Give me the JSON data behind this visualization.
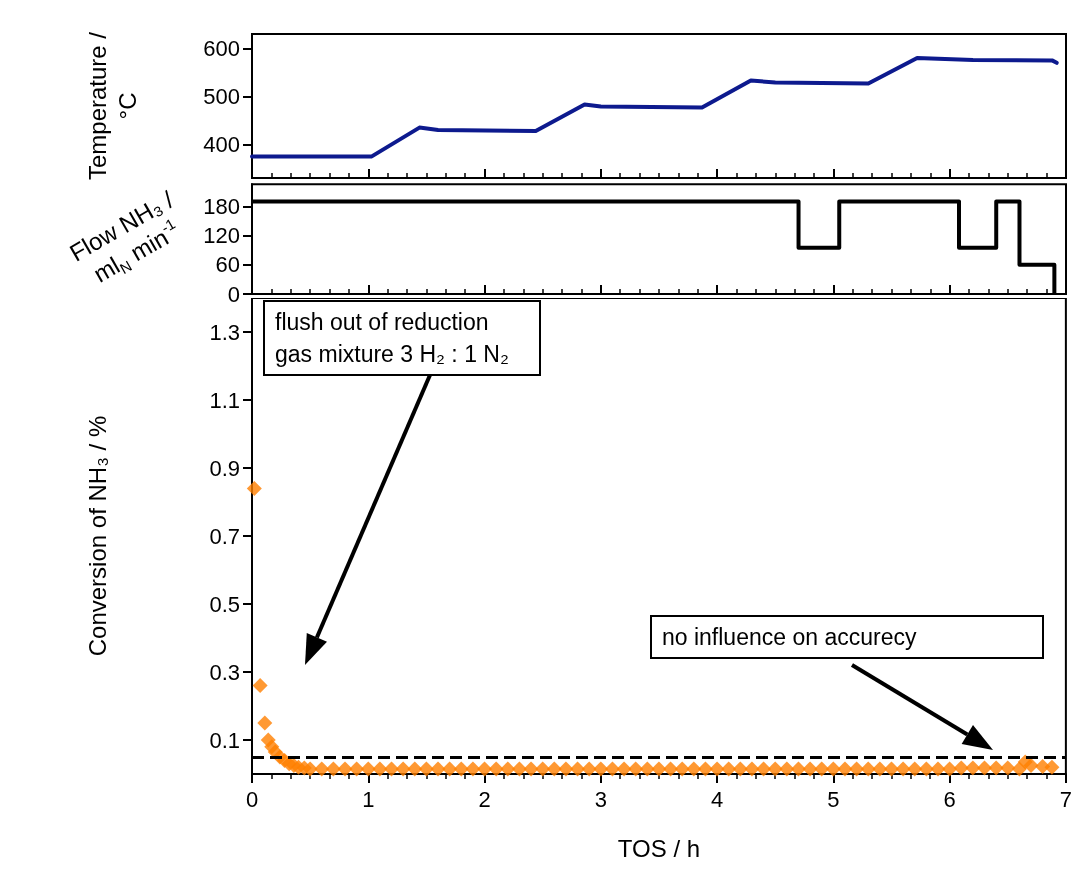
{
  "chart_data": [
    {
      "type": "line",
      "ylabel": "Temperature / °C",
      "x": [
        0,
        1.03,
        1.44,
        1.6,
        2.44,
        2.86,
        3.0,
        3.87,
        4.29,
        4.5,
        5.3,
        5.72,
        6.2,
        6.88,
        6.92
      ],
      "series": [
        {
          "color": "#0d1a8e",
          "values": [
            375,
            375,
            435,
            430,
            428,
            483,
            479,
            477,
            533,
            529,
            527,
            580,
            576,
            575,
            570
          ]
        }
      ],
      "xlim": [
        0,
        7
      ],
      "xticks": [
        0,
        1,
        2,
        3,
        4,
        5,
        6,
        7
      ],
      "ylim": [
        330,
        630
      ],
      "yticks": [
        400,
        500,
        600
      ],
      "tick_labels": "y",
      "line_style": "solid",
      "marker": "none"
    },
    {
      "type": "step",
      "ylabel": "Flow NH₃ / ml$_{N}$ min$^{-1}$",
      "x": [
        0,
        4.7,
        5.05,
        6.08,
        6.4,
        6.6,
        6.9
      ],
      "series": [
        {
          "color": "#000000",
          "values": [
            190,
            95,
            190,
            95,
            190,
            60,
            0
          ]
        }
      ],
      "xlim": [
        0,
        7
      ],
      "xticks": [
        0,
        1,
        2,
        3,
        4,
        5,
        6,
        7
      ],
      "ylim": [
        0,
        225
      ],
      "yticks": [
        0,
        60,
        120,
        180
      ],
      "tick_labels": "y",
      "line_style": "solid",
      "marker": "none"
    },
    {
      "type": "scatter",
      "xlabel": "TOS / h",
      "ylabel": "Conversion of NH₃ / %",
      "marker": "diamond",
      "x": [
        0.02,
        0.07,
        0.11,
        0.14,
        0.17,
        0.2,
        0.24,
        0.28,
        0.32,
        0.36,
        0.4,
        0.45,
        0.5,
        0.6,
        0.7,
        0.8,
        0.9,
        1.0,
        1.1,
        1.2,
        1.3,
        1.4,
        1.5,
        1.6,
        1.7,
        1.8,
        1.9,
        2.0,
        2.1,
        2.2,
        2.3,
        2.4,
        2.5,
        2.6,
        2.7,
        2.8,
        2.9,
        3.0,
        3.1,
        3.2,
        3.3,
        3.4,
        3.5,
        3.6,
        3.7,
        3.8,
        3.9,
        4.0,
        4.1,
        4.2,
        4.3,
        4.4,
        4.5,
        4.6,
        4.7,
        4.8,
        4.9,
        5.0,
        5.1,
        5.2,
        5.3,
        5.4,
        5.5,
        5.6,
        5.7,
        5.8,
        5.9,
        6.0,
        6.1,
        6.2,
        6.3,
        6.4,
        6.5,
        6.6,
        6.65,
        6.7,
        6.8,
        6.88
      ],
      "series": [
        {
          "color": "#ff8000",
          "values": [
            0.84,
            0.26,
            0.15,
            0.1,
            0.08,
            0.065,
            0.05,
            0.04,
            0.03,
            0.025,
            0.02,
            0.018,
            0.015,
            0.015,
            0.015,
            0.015,
            0.015,
            0.015,
            0.015,
            0.015,
            0.015,
            0.015,
            0.015,
            0.015,
            0.015,
            0.015,
            0.015,
            0.015,
            0.015,
            0.015,
            0.015,
            0.015,
            0.015,
            0.015,
            0.015,
            0.015,
            0.015,
            0.015,
            0.015,
            0.015,
            0.015,
            0.015,
            0.015,
            0.015,
            0.015,
            0.015,
            0.015,
            0.015,
            0.015,
            0.015,
            0.015,
            0.015,
            0.015,
            0.015,
            0.015,
            0.015,
            0.015,
            0.015,
            0.015,
            0.015,
            0.015,
            0.015,
            0.015,
            0.015,
            0.015,
            0.015,
            0.015,
            0.015,
            0.018,
            0.018,
            0.018,
            0.018,
            0.018,
            0.015,
            0.035,
            0.025,
            0.022,
            0.02
          ]
        }
      ],
      "xlim": [
        0,
        7
      ],
      "xticks": [
        0,
        1,
        2,
        3,
        4,
        5,
        6,
        7
      ],
      "ylim": [
        0,
        1.4
      ],
      "yticks": [
        0.1,
        0.3,
        0.5,
        0.7,
        0.9,
        1.1,
        1.3
      ],
      "ref_lines": [
        {
          "axis": "y",
          "value": 0.05,
          "color": "#000000",
          "line_style": "dashed"
        }
      ],
      "annotations": [
        "flush out of reduction gas mixture 3 H₂ : 1 N₂",
        "no influence on accurecy"
      ]
    }
  ]
}
